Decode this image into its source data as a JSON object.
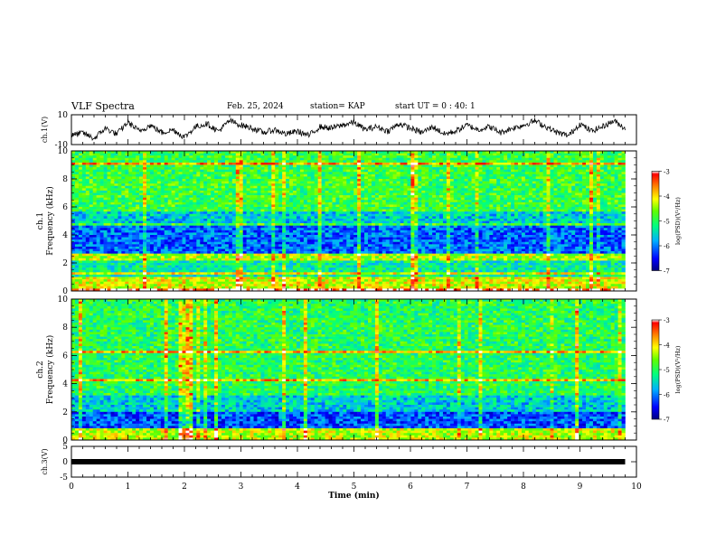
{
  "header": {
    "title": "VLF Spectra",
    "date": "Feb. 25, 2024",
    "station": "station= KAP",
    "start": "start  UT =  0 : 40: 1"
  },
  "chart_data": [
    {
      "type": "line",
      "name": "ch1-waveform",
      "ylabel": "ch.1(V)",
      "ylim": [
        -10,
        10
      ],
      "yticks": [
        "10",
        "-10"
      ],
      "xlim": [
        0,
        10
      ],
      "data_end_min": 9.8,
      "series": [
        {
          "x": [
            0,
            0.2,
            0.4,
            0.6,
            0.8,
            1.0,
            1.2,
            1.4,
            1.6,
            1.8,
            2.0,
            2.2,
            2.4,
            2.6,
            2.8,
            3.0,
            3.2,
            3.4,
            3.6,
            3.8,
            4.0,
            4.2,
            4.4,
            4.6,
            4.8,
            5.0,
            5.2,
            5.4,
            5.6,
            5.8,
            6.0,
            6.2,
            6.4,
            6.6,
            6.8,
            7.0,
            7.2,
            7.4,
            7.6,
            7.8,
            8.0,
            8.2,
            8.4,
            8.6,
            8.8,
            9.0,
            9.2,
            9.4,
            9.6,
            9.8
          ],
          "values": [
            -4,
            -2,
            -6,
            1,
            -3,
            5,
            -1,
            3,
            -2,
            0,
            -5,
            2,
            4,
            -1,
            6,
            3,
            1,
            -2,
            0,
            -3,
            -1,
            -4,
            2,
            1,
            3,
            5,
            0,
            2,
            -1,
            4,
            1,
            -2,
            2,
            -3,
            -1,
            3,
            0,
            2,
            -2,
            1,
            3,
            6,
            2,
            -2,
            -4,
            4,
            -1,
            2,
            6,
            1
          ]
        }
      ]
    },
    {
      "type": "heatmap",
      "name": "ch1-spectrogram",
      "ylabel": "ch.1 Frequency (kHz)",
      "ylim": [
        0,
        10
      ],
      "yticks": [
        "0",
        "2",
        "4",
        "6",
        "8",
        "10"
      ],
      "xlim": [
        0,
        10
      ],
      "colorbar": {
        "label": "log(PSD)(V²/Hz)",
        "min": -7,
        "max": -3,
        "ticks": [
          "-3",
          "-4",
          "-5",
          "-6",
          "-7"
        ]
      },
      "description_bands": [
        {
          "kHz_from": 0,
          "kHz_to": 1.0,
          "level": -4.2
        },
        {
          "kHz_from": 1.0,
          "kHz_to": 2.2,
          "level": -5.3
        },
        {
          "kHz_from": 2.2,
          "kHz_to": 2.6,
          "level": -4.4
        },
        {
          "kHz_from": 2.6,
          "kHz_to": 4.8,
          "level": -6.1
        },
        {
          "kHz_from": 4.8,
          "kHz_to": 5.6,
          "level": -5.6
        },
        {
          "kHz_from": 5.6,
          "kHz_to": 10,
          "level": -4.9
        }
      ]
    },
    {
      "type": "heatmap",
      "name": "ch2-spectrogram",
      "ylabel": "ch.2 Frequency (kHz)",
      "ylim": [
        0,
        10
      ],
      "yticks": [
        "0",
        "2",
        "4",
        "6",
        "8",
        "10"
      ],
      "xlim": [
        0,
        10
      ],
      "colorbar": {
        "label": "log(PSD)(V²/Hz)",
        "min": -7,
        "max": -3,
        "ticks": [
          "-3",
          "-4",
          "-5",
          "-6",
          "-7"
        ]
      },
      "description_bands": [
        {
          "kHz_from": 0,
          "kHz_to": 0.8,
          "level": -4.3
        },
        {
          "kHz_from": 0.8,
          "kHz_to": 2.0,
          "level": -6.2
        },
        {
          "kHz_from": 2.0,
          "kHz_to": 3.2,
          "level": -5.6
        },
        {
          "kHz_from": 3.2,
          "kHz_to": 10,
          "level": -5.0
        }
      ]
    },
    {
      "type": "line",
      "name": "ch3-waveform",
      "ylabel": "ch.3(V)",
      "ylim": [
        -5,
        5
      ],
      "yticks": [
        "5",
        "0",
        "-5"
      ],
      "xlim": [
        0,
        10
      ],
      "xlabel": "Time  (min)",
      "xticks": [
        "0",
        "1",
        "2",
        "3",
        "4",
        "5",
        "6",
        "7",
        "8",
        "9",
        "10"
      ],
      "data_end_min": 9.8,
      "series": [
        {
          "x": [
            0,
            9.8
          ],
          "values": [
            0,
            0
          ]
        }
      ]
    }
  ],
  "colors": {
    "colormap": [
      "#0000ff",
      "#00a0ff",
      "#00ff80",
      "#40ff00",
      "#ffff00",
      "#ff8000",
      "#ff0000"
    ],
    "axis": "#000000"
  }
}
